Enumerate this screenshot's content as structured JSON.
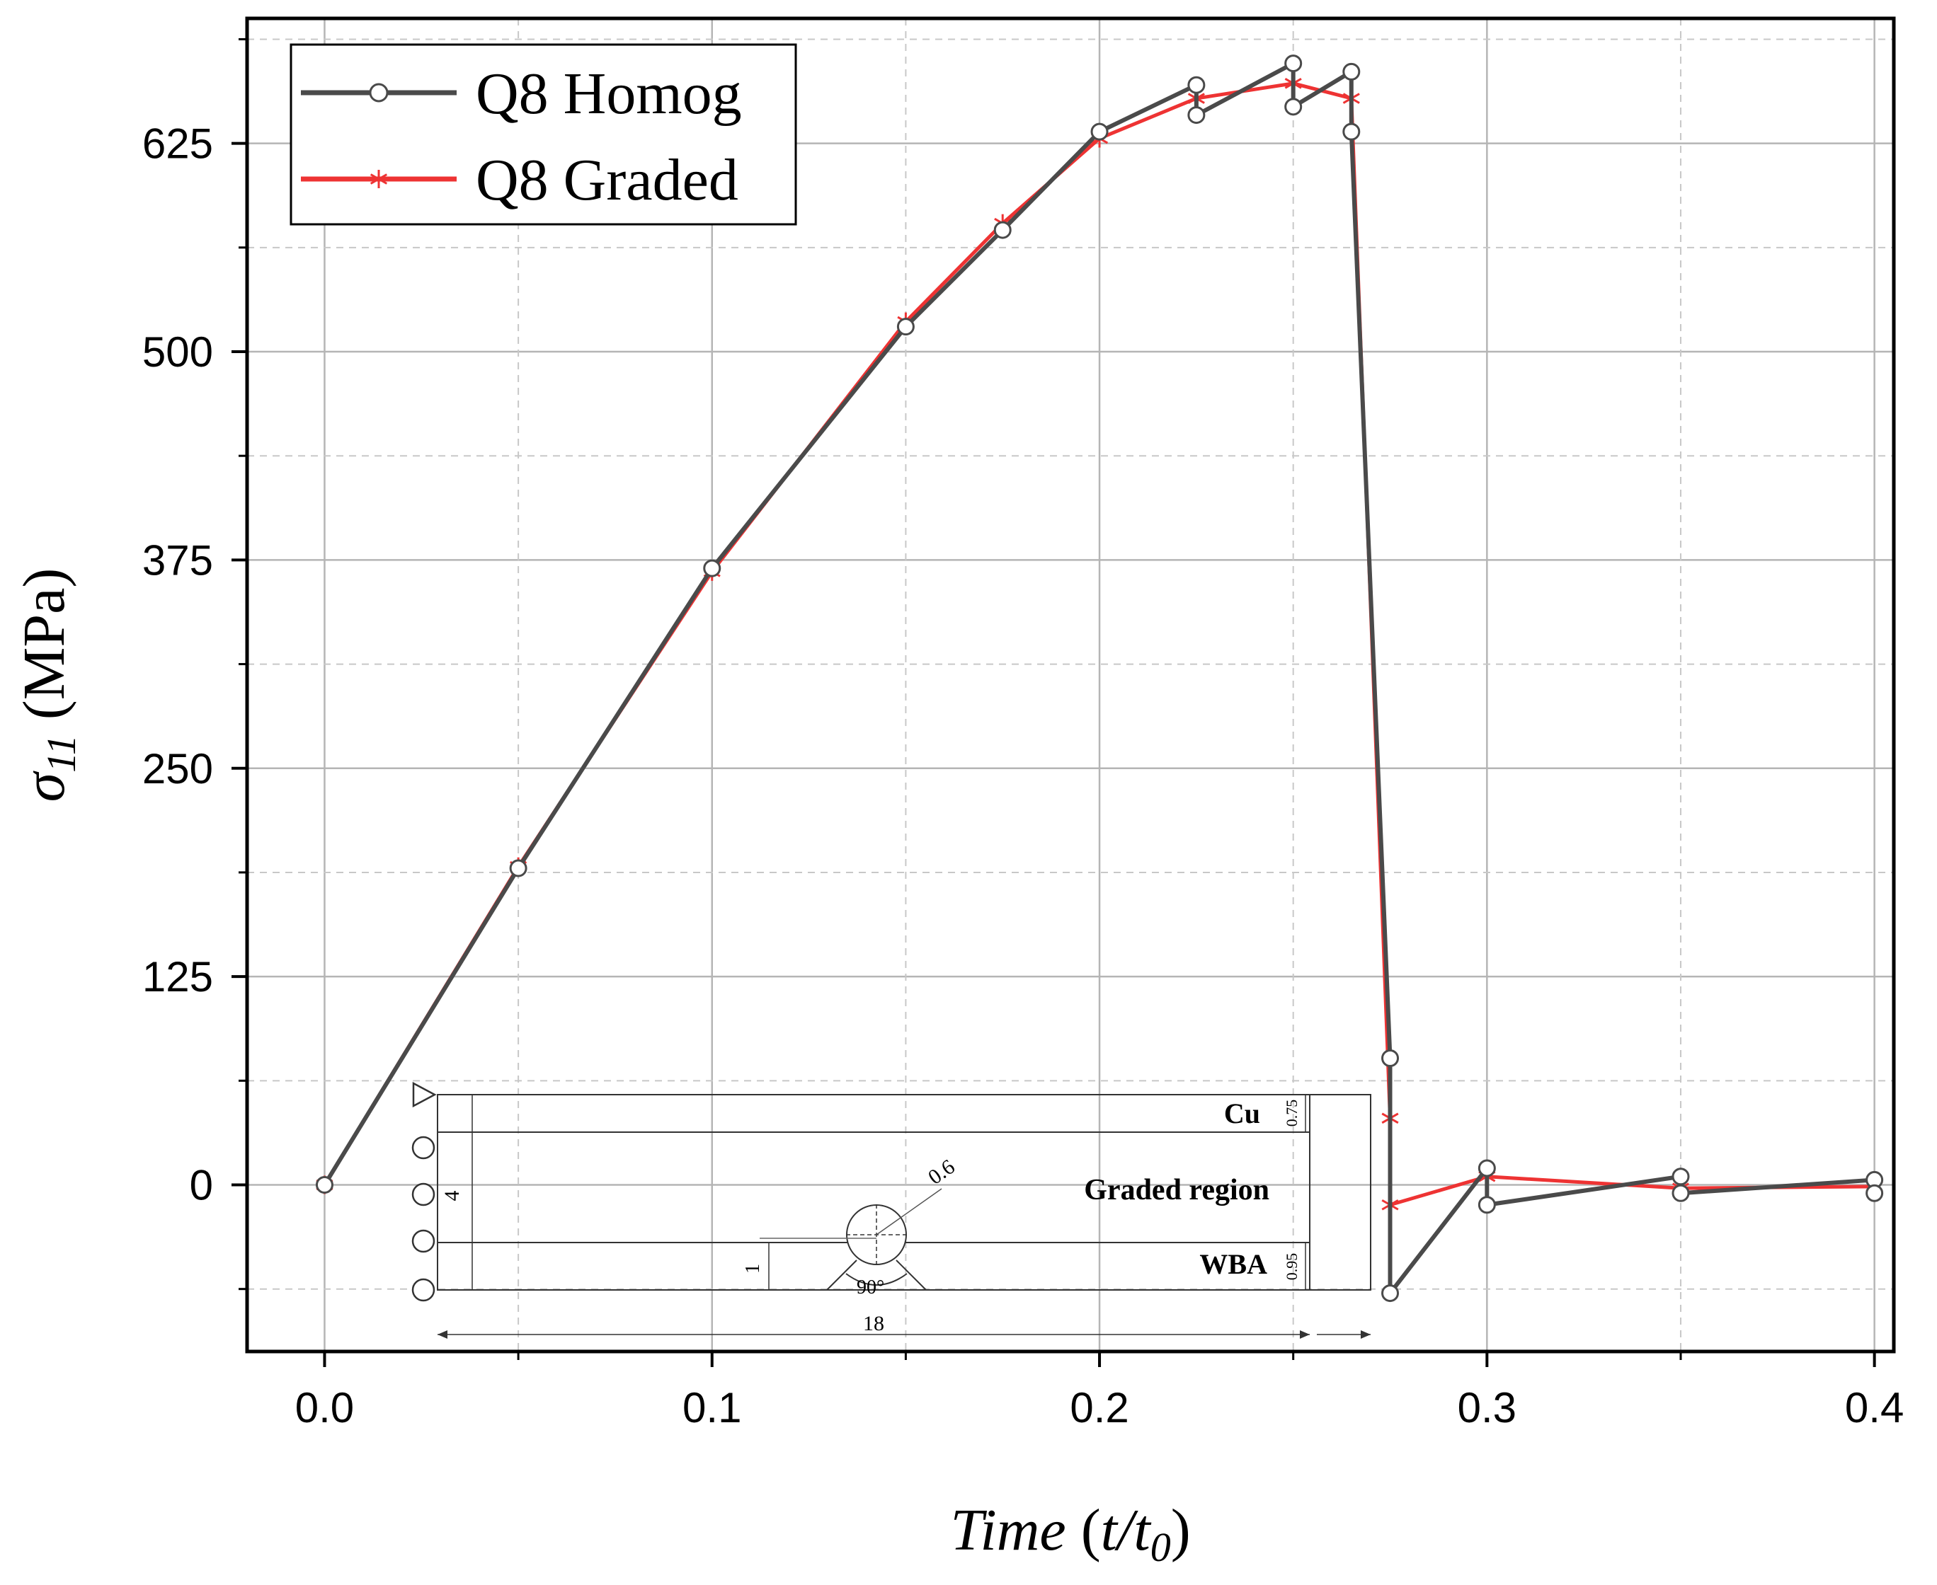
{
  "chart_data": {
    "type": "line",
    "title": "",
    "xlabel": "Time (t/t0)",
    "ylabel": "σ11 (MPa)",
    "xlim": [
      -0.02,
      0.405
    ],
    "ylim": [
      -100,
      700
    ],
    "xticks": [
      "0.0",
      "0.1",
      "0.2",
      "0.3",
      "0.4"
    ],
    "yticks": [
      "0",
      "125",
      "250",
      "375",
      "500",
      "625"
    ],
    "grid": true,
    "legend_position": "top-left",
    "series": [
      {
        "name": "Q8 Homog",
        "color": "#4a4a4a",
        "marker": "open-circle",
        "x": [
          0.0,
          0.05,
          0.1,
          0.15,
          0.175,
          0.2,
          0.225,
          0.225,
          0.25,
          0.25,
          0.265,
          0.265,
          0.275,
          0.275,
          0.3,
          0.3,
          0.35,
          0.35,
          0.4,
          0.4
        ],
        "y": [
          0,
          190,
          370,
          515,
          573,
          632,
          660,
          642,
          673,
          647,
          668,
          632,
          76,
          -65,
          10,
          -12,
          5,
          -5,
          3,
          -5
        ]
      },
      {
        "name": "Q8 Graded",
        "color": "#ee3333",
        "marker": "asterisk",
        "x": [
          0.0,
          0.05,
          0.1,
          0.15,
          0.175,
          0.2,
          0.225,
          0.25,
          0.265,
          0.275,
          0.275,
          0.3,
          0.35,
          0.4
        ],
        "y": [
          0,
          191,
          368,
          518,
          577,
          628,
          652,
          661,
          652,
          40,
          -12,
          5,
          -2,
          -1
        ]
      }
    ]
  },
  "inset": {
    "labels": {
      "top_layer": "Cu",
      "middle": "Graded region",
      "bottom_layer": "WBA"
    },
    "dimensions": {
      "height": "4",
      "length": "18",
      "radius": "0.6",
      "angle": "90°",
      "notch_offset": "1",
      "top_thickness": "0.75",
      "bottom_thickness": "0.95"
    }
  }
}
